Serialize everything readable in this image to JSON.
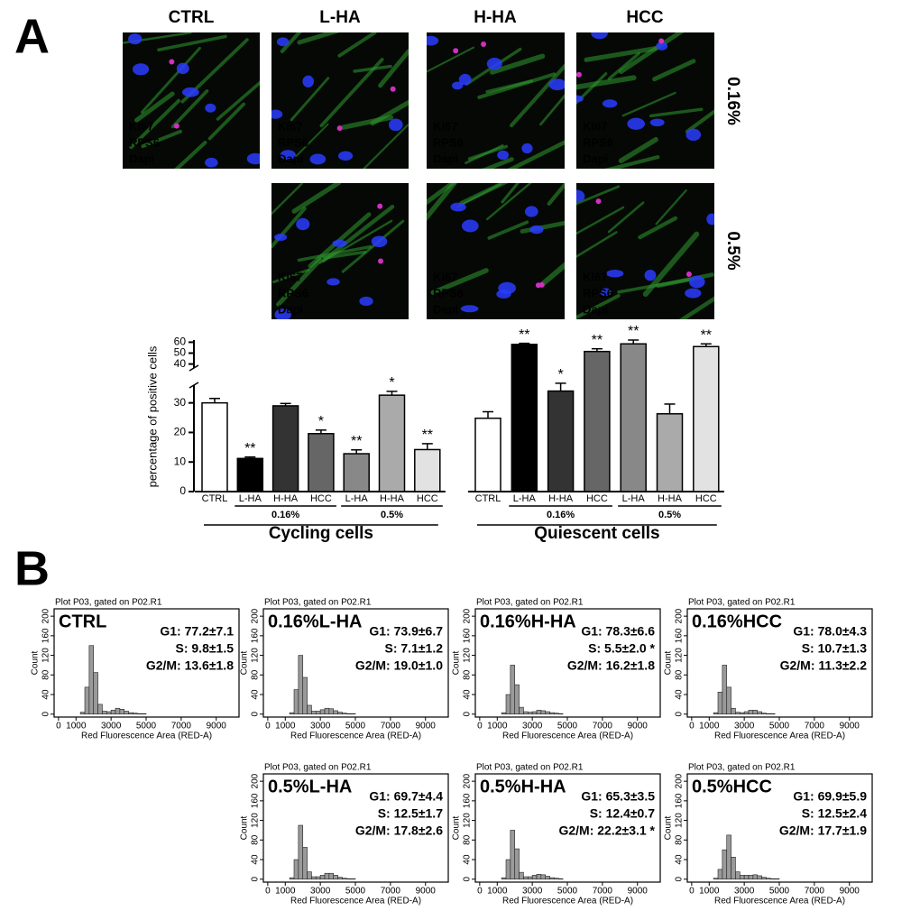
{
  "panel_labels": [
    "A",
    "B"
  ],
  "micrographs": {
    "columns": [
      "CTRL",
      "L-HA",
      "H-HA",
      "HCC"
    ],
    "rows": [
      "0.16%",
      "0.5%"
    ],
    "stains": [
      "Ki67",
      "RPS6",
      "Dapi"
    ]
  },
  "chart_data": [
    {
      "type": "bar",
      "ylabel": "percentage of positive cells",
      "categories": [
        "CTRL",
        "L-HA",
        "H-HA",
        "HCC",
        "L-HA",
        "H-HA",
        "HCC"
      ],
      "concentration": [
        null,
        "0.16%",
        "0.16%",
        "0.16%",
        "0.5%",
        "0.5%",
        "0.5%"
      ],
      "colors": [
        "#ffffff",
        "#000000",
        "#333333",
        "#666666",
        "#888888",
        "#aaaaaa",
        "#e2e2e2"
      ],
      "series": [
        {
          "name": "Cycling cells",
          "values": [
            30,
            11.2,
            29,
            19.6,
            12.8,
            32.6,
            14.2
          ],
          "errors": [
            1.5,
            0.5,
            0.8,
            1.2,
            1.3,
            1.3,
            2.0
          ],
          "significance": [
            null,
            "**",
            null,
            "*",
            "**",
            "*",
            "**"
          ]
        },
        {
          "name": "Quiescent cells",
          "values": [
            24.8,
            58,
            34,
            51.5,
            58.5,
            26.3,
            56
          ],
          "errors": [
            2.2,
            1,
            2.2,
            2.5,
            3.5,
            3.3,
            2.5
          ],
          "significance": [
            null,
            "**",
            "*",
            "**",
            "**",
            null,
            "**"
          ]
        }
      ],
      "ylim": [
        0,
        62
      ],
      "ybreak": [
        36,
        38
      ],
      "yticks": [
        0,
        10,
        20,
        30,
        40,
        50,
        60
      ]
    },
    {
      "type": "histogram",
      "header": "Plot P03, gated on P02.R1",
      "title": "CTRL",
      "annotations": [
        "G1: 77.2±7.1",
        "S: 9.8±1.5",
        "G2/M: 13.6±1.8"
      ],
      "bins": [
        0,
        250,
        500,
        750,
        1000,
        1250,
        1500,
        1750,
        2000,
        2250,
        2500,
        2750,
        3000,
        3250,
        3500,
        3750,
        4000,
        4250,
        4500,
        4750,
        5000,
        5250,
        5500,
        5750,
        6000
      ],
      "counts": [
        0,
        0,
        0,
        0,
        0,
        4,
        55,
        140,
        85,
        20,
        6,
        5,
        8,
        12,
        10,
        6,
        3,
        2,
        1,
        1,
        0,
        0,
        0,
        0
      ],
      "color": "#9a9a9a",
      "xlim": [
        -250,
        10300
      ],
      "xticks": [
        0,
        1000,
        3000,
        5000,
        7000,
        9000
      ],
      "ylim": [
        -6,
        215
      ],
      "yticks": [
        0,
        40,
        80,
        120,
        160,
        200
      ],
      "xlabel": "Red Fluorescence Area (RED-A)",
      "ylabel": "Count"
    },
    {
      "type": "histogram",
      "header": "Plot P03, gated on P02.R1",
      "title": "0.16%L-HA",
      "annotations": [
        "G1: 73.9±6.7",
        "S: 7.1±1.2",
        "G2/M: 19.0±1.0"
      ],
      "bins": [
        0,
        250,
        500,
        750,
        1000,
        1250,
        1500,
        1750,
        2000,
        2250,
        2500,
        2750,
        3000,
        3250,
        3500,
        3750,
        4000,
        4250,
        4500,
        4750,
        5000,
        5250,
        5500,
        5750,
        6000
      ],
      "counts": [
        0,
        0,
        0,
        0,
        0,
        3,
        50,
        120,
        75,
        18,
        6,
        6,
        9,
        12,
        11,
        7,
        4,
        2,
        1,
        1,
        0,
        0,
        0,
        0
      ],
      "color": "#9a9a9a",
      "xlim": [
        -250,
        10300
      ],
      "xticks": [
        0,
        1000,
        3000,
        5000,
        7000,
        9000
      ],
      "ylim": [
        -6,
        215
      ],
      "yticks": [
        0,
        40,
        80,
        120,
        160,
        200
      ],
      "xlabel": "Red Fluorescence Area (RED-A)",
      "ylabel": "Count"
    },
    {
      "type": "histogram",
      "header": "Plot P03, gated on P02.R1",
      "title": "0.16%H-HA",
      "annotations": [
        "G1: 78.3±6.6",
        "S: 5.5±2.0 *",
        "G2/M: 16.2±1.8"
      ],
      "bins": [
        0,
        250,
        500,
        750,
        1000,
        1250,
        1500,
        1750,
        2000,
        2250,
        2500,
        2750,
        3000,
        3250,
        3500,
        3750,
        4000,
        4250,
        4500,
        4750,
        5000,
        5250,
        5500,
        5750,
        6000
      ],
      "counts": [
        0,
        0,
        0,
        0,
        0,
        3,
        40,
        100,
        60,
        14,
        5,
        4,
        5,
        8,
        7,
        5,
        3,
        2,
        1,
        0,
        0,
        0,
        0,
        0
      ],
      "color": "#9a9a9a",
      "xlim": [
        -250,
        10300
      ],
      "xticks": [
        0,
        1000,
        3000,
        5000,
        7000,
        9000
      ],
      "ylim": [
        -6,
        215
      ],
      "yticks": [
        0,
        40,
        80,
        120,
        160,
        200
      ],
      "xlabel": "Red Fluorescence Area (RED-A)",
      "ylabel": "Count"
    },
    {
      "type": "histogram",
      "header": "Plot P03, gated on P02.R1",
      "title": "0.16%HCC",
      "annotations": [
        "G1: 78.0±4.3",
        "S: 10.7±1.3",
        "G2/M: 11.3±2.2"
      ],
      "bins": [
        0,
        250,
        500,
        750,
        1000,
        1250,
        1500,
        1750,
        2000,
        2250,
        2500,
        2750,
        3000,
        3250,
        3500,
        3750,
        4000,
        4250,
        4500,
        4750,
        5000,
        5250,
        5500,
        5750,
        6000
      ],
      "counts": [
        0,
        0,
        0,
        0,
        0,
        3,
        45,
        100,
        55,
        12,
        4,
        3,
        5,
        8,
        8,
        5,
        2,
        1,
        1,
        0,
        0,
        0,
        0,
        0
      ],
      "color": "#9a9a9a",
      "xlim": [
        -250,
        10300
      ],
      "xticks": [
        0,
        1000,
        3000,
        5000,
        7000,
        9000
      ],
      "ylim": [
        -6,
        215
      ],
      "yticks": [
        0,
        40,
        80,
        120,
        160,
        200
      ],
      "xlabel": "Red Fluorescence Area (RED-A)",
      "ylabel": "Count"
    },
    {
      "type": "histogram",
      "header": "Plot P03, gated on P02.R1",
      "title": "0.5%L-HA",
      "annotations": [
        "G1: 69.7±4.4",
        "S: 12.5±1.7",
        "G2/M: 17.8±2.6"
      ],
      "bins": [
        0,
        250,
        500,
        750,
        1000,
        1250,
        1500,
        1750,
        2000,
        2250,
        2500,
        2750,
        3000,
        3250,
        3500,
        3750,
        4000,
        4250,
        4500,
        4750,
        5000,
        5250,
        5500,
        5750,
        6000
      ],
      "counts": [
        0,
        0,
        0,
        0,
        0,
        3,
        40,
        110,
        65,
        15,
        5,
        5,
        8,
        12,
        12,
        8,
        4,
        2,
        1,
        1,
        0,
        0,
        0,
        0
      ],
      "color": "#9a9a9a",
      "xlim": [
        -250,
        10300
      ],
      "xticks": [
        0,
        1000,
        3000,
        5000,
        7000,
        9000
      ],
      "ylim": [
        -6,
        215
      ],
      "yticks": [
        0,
        40,
        80,
        120,
        160,
        200
      ],
      "xlabel": "Red Fluorescence Area (RED-A)",
      "ylabel": "Count"
    },
    {
      "type": "histogram",
      "header": "Plot P03, gated on P02.R1",
      "title": "0.5%H-HA",
      "annotations": [
        "G1: 65.3±3.5",
        "S: 12.4±0.7",
        "G2/M: 22.2±3.1 *"
      ],
      "bins": [
        0,
        250,
        500,
        750,
        1000,
        1250,
        1500,
        1750,
        2000,
        2250,
        2500,
        2750,
        3000,
        3250,
        3500,
        3750,
        4000,
        4250,
        4500,
        4750,
        5000,
        5250,
        5500,
        5750,
        6000
      ],
      "counts": [
        0,
        0,
        0,
        0,
        0,
        3,
        40,
        100,
        62,
        14,
        5,
        5,
        8,
        10,
        9,
        6,
        3,
        2,
        1,
        0,
        0,
        0,
        0,
        0
      ],
      "color": "#9a9a9a",
      "xlim": [
        -250,
        10300
      ],
      "xticks": [
        0,
        1000,
        3000,
        5000,
        7000,
        9000
      ],
      "ylim": [
        -6,
        215
      ],
      "yticks": [
        0,
        40,
        80,
        120,
        160,
        200
      ],
      "xlabel": "Red Fluorescence Area (RED-A)",
      "ylabel": "Count"
    },
    {
      "type": "histogram",
      "header": "Plot P03, gated on P02.R1",
      "title": "0.5%HCC",
      "annotations": [
        "G1: 69.9±5.9",
        "S: 12.5±2.4",
        "G2/M: 17.7±1.9"
      ],
      "bins": [
        0,
        250,
        500,
        750,
        1000,
        1250,
        1500,
        1750,
        2000,
        2250,
        2500,
        2750,
        3000,
        3250,
        3500,
        3750,
        4000,
        4250,
        4500,
        4750,
        5000,
        5250,
        5500,
        5750,
        6000
      ],
      "counts": [
        0,
        0,
        0,
        0,
        0,
        2,
        20,
        60,
        90,
        45,
        15,
        8,
        8,
        8,
        9,
        7,
        4,
        2,
        1,
        1,
        0,
        0,
        0,
        0
      ],
      "color": "#9a9a9a",
      "xlim": [
        -250,
        10300
      ],
      "xticks": [
        0,
        1000,
        3000,
        5000,
        7000,
        9000
      ],
      "ylim": [
        -6,
        215
      ],
      "yticks": [
        0,
        40,
        80,
        120,
        160,
        200
      ],
      "xlabel": "Red Fluorescence Area (RED-A)",
      "ylabel": "Count"
    }
  ]
}
